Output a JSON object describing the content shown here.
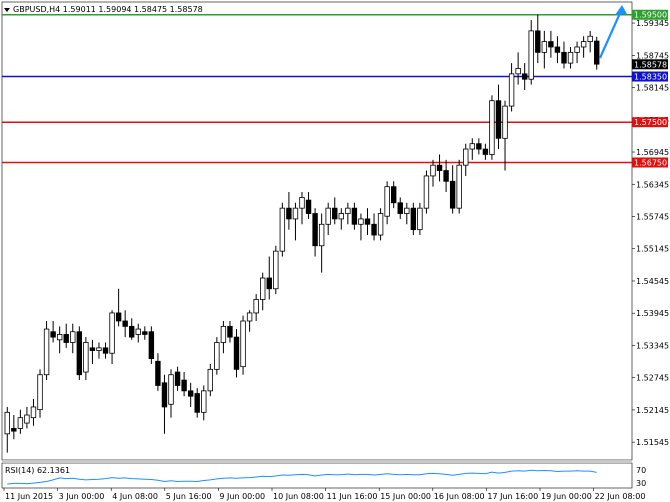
{
  "header": {
    "symbol_text": "GBPUSD,H4  1.59011 1.59094 1.58475 1.58578"
  },
  "indicator": {
    "label": "RSI(14) 62.1361",
    "levels": [
      "70",
      "30"
    ],
    "color": "#1e90ff"
  },
  "price_scale": {
    "ticks": [
      "1.59345",
      "1.58745",
      "1.58145",
      "1.57545",
      "1.56945",
      "1.56345",
      "1.55745",
      "1.55145",
      "1.54545",
      "1.53945",
      "1.53345",
      "1.52745",
      "1.52145",
      "1.51545"
    ]
  },
  "time_scale": {
    "ticks": [
      "11 Jun 2015",
      "3 Jun 00:00",
      "4 Jun 08:00",
      "5 Jun 16:00",
      "9 Jun 00:00",
      "10 Jun 08:00",
      "11 Jun 16:00",
      "15 Jun 00:00",
      "16 Jun 08:00",
      "17 Jun 16:00",
      "19 Jun 00:00",
      "22 Jun 08:00"
    ]
  },
  "levels": [
    {
      "label": "1.59500",
      "value": 1.595,
      "color": "#2e9e2e"
    },
    {
      "label": "1.58350",
      "value": 1.5835,
      "color": "#1010d0"
    },
    {
      "label": "1.57500",
      "value": 1.575,
      "color": "#e01010"
    },
    {
      "label": "1.56750",
      "value": 1.5675,
      "color": "#e01010"
    }
  ],
  "current_price": {
    "label": "1.58578",
    "value": 1.58578
  },
  "arrow_color": "#1e90ff",
  "chart_data": {
    "type": "candlestick",
    "title": "GBPUSD,H4",
    "ylim": [
      1.5125,
      1.597
    ],
    "candles": [
      {
        "o": 1.517,
        "h": 1.522,
        "l": 1.5135,
        "c": 1.521
      },
      {
        "o": 1.518,
        "h": 1.5205,
        "l": 1.516,
        "c": 1.5175
      },
      {
        "o": 1.518,
        "h": 1.5215,
        "l": 1.517,
        "c": 1.52
      },
      {
        "o": 1.519,
        "h": 1.522,
        "l": 1.518,
        "c": 1.5205
      },
      {
        "o": 1.52,
        "h": 1.5235,
        "l": 1.5185,
        "c": 1.522
      },
      {
        "o": 1.5215,
        "h": 1.529,
        "l": 1.52,
        "c": 1.528
      },
      {
        "o": 1.528,
        "h": 1.538,
        "l": 1.527,
        "c": 1.5365
      },
      {
        "o": 1.536,
        "h": 1.538,
        "l": 1.534,
        "c": 1.535
      },
      {
        "o": 1.5345,
        "h": 1.537,
        "l": 1.532,
        "c": 1.5355
      },
      {
        "o": 1.5355,
        "h": 1.5375,
        "l": 1.533,
        "c": 1.534
      },
      {
        "o": 1.534,
        "h": 1.5375,
        "l": 1.532,
        "c": 1.536
      },
      {
        "o": 1.536,
        "h": 1.537,
        "l": 1.527,
        "c": 1.528
      },
      {
        "o": 1.5285,
        "h": 1.535,
        "l": 1.527,
        "c": 1.534
      },
      {
        "o": 1.533,
        "h": 1.5345,
        "l": 1.53,
        "c": 1.5325
      },
      {
        "o": 1.5325,
        "h": 1.534,
        "l": 1.531,
        "c": 1.533
      },
      {
        "o": 1.533,
        "h": 1.534,
        "l": 1.531,
        "c": 1.532
      },
      {
        "o": 1.532,
        "h": 1.54,
        "l": 1.53,
        "c": 1.5395
      },
      {
        "o": 1.5395,
        "h": 1.544,
        "l": 1.537,
        "c": 1.538
      },
      {
        "o": 1.538,
        "h": 1.54,
        "l": 1.535,
        "c": 1.537
      },
      {
        "o": 1.537,
        "h": 1.5385,
        "l": 1.5345,
        "c": 1.535
      },
      {
        "o": 1.5355,
        "h": 1.5375,
        "l": 1.534,
        "c": 1.5365
      },
      {
        "o": 1.536,
        "h": 1.537,
        "l": 1.5345,
        "c": 1.5355
      },
      {
        "o": 1.536,
        "h": 1.537,
        "l": 1.53,
        "c": 1.531
      },
      {
        "o": 1.5305,
        "h": 1.532,
        "l": 1.525,
        "c": 1.526
      },
      {
        "o": 1.5265,
        "h": 1.528,
        "l": 1.517,
        "c": 1.522
      },
      {
        "o": 1.5225,
        "h": 1.529,
        "l": 1.52,
        "c": 1.528
      },
      {
        "o": 1.5285,
        "h": 1.5295,
        "l": 1.525,
        "c": 1.526
      },
      {
        "o": 1.527,
        "h": 1.5285,
        "l": 1.524,
        "c": 1.525
      },
      {
        "o": 1.525,
        "h": 1.5265,
        "l": 1.522,
        "c": 1.524
      },
      {
        "o": 1.5245,
        "h": 1.5255,
        "l": 1.52,
        "c": 1.521
      },
      {
        "o": 1.521,
        "h": 1.526,
        "l": 1.5195,
        "c": 1.525
      },
      {
        "o": 1.525,
        "h": 1.53,
        "l": 1.524,
        "c": 1.529
      },
      {
        "o": 1.529,
        "h": 1.535,
        "l": 1.528,
        "c": 1.534
      },
      {
        "o": 1.534,
        "h": 1.538,
        "l": 1.532,
        "c": 1.537
      },
      {
        "o": 1.537,
        "h": 1.538,
        "l": 1.534,
        "c": 1.535
      },
      {
        "o": 1.535,
        "h": 1.5365,
        "l": 1.5275,
        "c": 1.529
      },
      {
        "o": 1.5295,
        "h": 1.539,
        "l": 1.528,
        "c": 1.538
      },
      {
        "o": 1.538,
        "h": 1.54,
        "l": 1.536,
        "c": 1.5395
      },
      {
        "o": 1.5395,
        "h": 1.543,
        "l": 1.538,
        "c": 1.542
      },
      {
        "o": 1.542,
        "h": 1.547,
        "l": 1.54,
        "c": 1.546
      },
      {
        "o": 1.546,
        "h": 1.55,
        "l": 1.542,
        "c": 1.544
      },
      {
        "o": 1.544,
        "h": 1.552,
        "l": 1.543,
        "c": 1.551
      },
      {
        "o": 1.551,
        "h": 1.56,
        "l": 1.55,
        "c": 1.559
      },
      {
        "o": 1.559,
        "h": 1.562,
        "l": 1.555,
        "c": 1.557
      },
      {
        "o": 1.557,
        "h": 1.56,
        "l": 1.553,
        "c": 1.559
      },
      {
        "o": 1.559,
        "h": 1.562,
        "l": 1.556,
        "c": 1.561
      },
      {
        "o": 1.5605,
        "h": 1.562,
        "l": 1.557,
        "c": 1.558
      },
      {
        "o": 1.558,
        "h": 1.559,
        "l": 1.55,
        "c": 1.552
      },
      {
        "o": 1.552,
        "h": 1.558,
        "l": 1.547,
        "c": 1.556
      },
      {
        "o": 1.556,
        "h": 1.56,
        "l": 1.554,
        "c": 1.559
      },
      {
        "o": 1.559,
        "h": 1.561,
        "l": 1.556,
        "c": 1.557
      },
      {
        "o": 1.557,
        "h": 1.559,
        "l": 1.555,
        "c": 1.558
      },
      {
        "o": 1.558,
        "h": 1.56,
        "l": 1.556,
        "c": 1.559
      },
      {
        "o": 1.559,
        "h": 1.56,
        "l": 1.555,
        "c": 1.556
      },
      {
        "o": 1.556,
        "h": 1.558,
        "l": 1.553,
        "c": 1.557
      },
      {
        "o": 1.557,
        "h": 1.559,
        "l": 1.554,
        "c": 1.556
      },
      {
        "o": 1.556,
        "h": 1.558,
        "l": 1.553,
        "c": 1.554
      },
      {
        "o": 1.554,
        "h": 1.559,
        "l": 1.553,
        "c": 1.558
      },
      {
        "o": 1.5575,
        "h": 1.564,
        "l": 1.556,
        "c": 1.563
      },
      {
        "o": 1.563,
        "h": 1.564,
        "l": 1.559,
        "c": 1.56
      },
      {
        "o": 1.56,
        "h": 1.561,
        "l": 1.557,
        "c": 1.558
      },
      {
        "o": 1.558,
        "h": 1.56,
        "l": 1.556,
        "c": 1.559
      },
      {
        "o": 1.559,
        "h": 1.56,
        "l": 1.554,
        "c": 1.555
      },
      {
        "o": 1.555,
        "h": 1.56,
        "l": 1.554,
        "c": 1.559
      },
      {
        "o": 1.559,
        "h": 1.566,
        "l": 1.558,
        "c": 1.565
      },
      {
        "o": 1.565,
        "h": 1.568,
        "l": 1.563,
        "c": 1.567
      },
      {
        "o": 1.567,
        "h": 1.569,
        "l": 1.564,
        "c": 1.566
      },
      {
        "o": 1.566,
        "h": 1.568,
        "l": 1.562,
        "c": 1.564
      },
      {
        "o": 1.564,
        "h": 1.567,
        "l": 1.558,
        "c": 1.559
      },
      {
        "o": 1.559,
        "h": 1.568,
        "l": 1.558,
        "c": 1.567
      },
      {
        "o": 1.567,
        "h": 1.571,
        "l": 1.565,
        "c": 1.57
      },
      {
        "o": 1.57,
        "h": 1.572,
        "l": 1.568,
        "c": 1.571
      },
      {
        "o": 1.571,
        "h": 1.572,
        "l": 1.569,
        "c": 1.57
      },
      {
        "o": 1.57,
        "h": 1.571,
        "l": 1.568,
        "c": 1.569
      },
      {
        "o": 1.569,
        "h": 1.58,
        "l": 1.568,
        "c": 1.579
      },
      {
        "o": 1.579,
        "h": 1.582,
        "l": 1.57,
        "c": 1.572
      },
      {
        "o": 1.572,
        "h": 1.579,
        "l": 1.566,
        "c": 1.578
      },
      {
        "o": 1.578,
        "h": 1.586,
        "l": 1.577,
        "c": 1.584
      },
      {
        "o": 1.584,
        "h": 1.588,
        "l": 1.582,
        "c": 1.585
      },
      {
        "o": 1.584,
        "h": 1.586,
        "l": 1.581,
        "c": 1.583
      },
      {
        "o": 1.583,
        "h": 1.594,
        "l": 1.582,
        "c": 1.592
      },
      {
        "o": 1.592,
        "h": 1.595,
        "l": 1.586,
        "c": 1.588
      },
      {
        "o": 1.588,
        "h": 1.592,
        "l": 1.585,
        "c": 1.59
      },
      {
        "o": 1.59,
        "h": 1.592,
        "l": 1.587,
        "c": 1.589
      },
      {
        "o": 1.589,
        "h": 1.591,
        "l": 1.586,
        "c": 1.588
      },
      {
        "o": 1.588,
        "h": 1.59,
        "l": 1.585,
        "c": 1.586
      },
      {
        "o": 1.586,
        "h": 1.589,
        "l": 1.585,
        "c": 1.588
      },
      {
        "o": 1.588,
        "h": 1.59,
        "l": 1.586,
        "c": 1.589
      },
      {
        "o": 1.589,
        "h": 1.591,
        "l": 1.587,
        "c": 1.59
      },
      {
        "o": 1.59,
        "h": 1.592,
        "l": 1.588,
        "c": 1.591
      },
      {
        "o": 1.5901,
        "h": 1.5909,
        "l": 1.5848,
        "c": 1.5858
      }
    ],
    "rsi": [
      26,
      28,
      28,
      27,
      29,
      31,
      34,
      39,
      45,
      43,
      44,
      41,
      39,
      40,
      41,
      43,
      46,
      44,
      45,
      43,
      42,
      41,
      40,
      38,
      34,
      36,
      34,
      35,
      35,
      34,
      37,
      39,
      42,
      44,
      45,
      44,
      45,
      46,
      48,
      50,
      49,
      51,
      54,
      53,
      55,
      56,
      55,
      51,
      54,
      56,
      55,
      55,
      57,
      55,
      56,
      56,
      54,
      56,
      58,
      56,
      55,
      56,
      55,
      55,
      58,
      59,
      58,
      56,
      53,
      56,
      59,
      60,
      59,
      58,
      63,
      60,
      62,
      66,
      67,
      66,
      69,
      67,
      68,
      67,
      65,
      66,
      66,
      67,
      66,
      66,
      62
    ]
  }
}
